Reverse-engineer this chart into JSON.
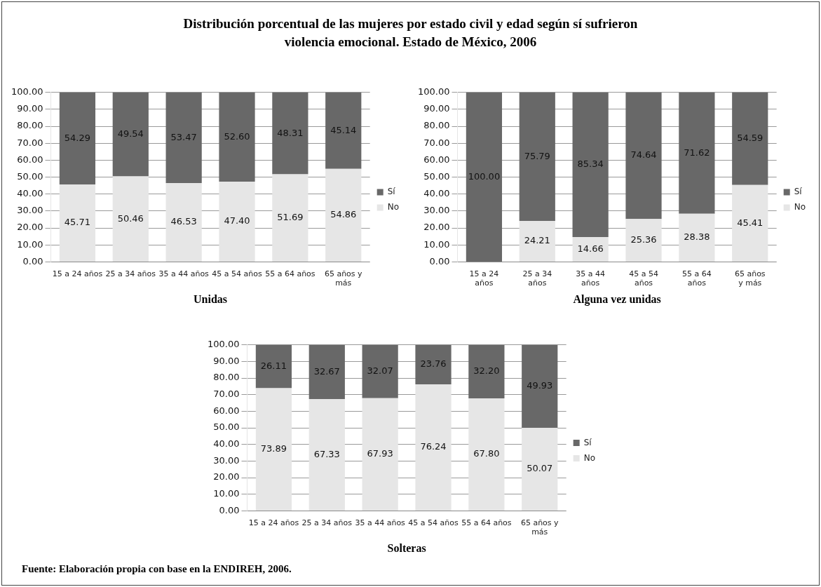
{
  "chart_data": [
    {
      "type": "bar",
      "title": "Distribución porcentual de las mujeres por estado civil y edad según sí sufrieron violencia emocional. Estado de México, 2006",
      "xlabel": "Unidas",
      "categories": [
        "15 a 24 años",
        "25 a 34 años",
        "35 a 44 años",
        "45 a 54 años",
        "55 a 64 años",
        "65 años y más"
      ],
      "stacked": true,
      "legend": "right",
      "grid": "y",
      "ylim": [
        0,
        100
      ],
      "yticks": [
        {
          "value": 0,
          "label": "0.00"
        },
        {
          "value": 10,
          "label": "10.00"
        },
        {
          "value": 20,
          "label": "20.00"
        },
        {
          "value": 30,
          "label": "30.00"
        },
        {
          "value": 40,
          "label": "40.00"
        },
        {
          "value": 50,
          "label": "50.00"
        },
        {
          "value": 60,
          "label": "60.00"
        },
        {
          "value": 70,
          "label": "70.00"
        },
        {
          "value": 80,
          "label": "80.00"
        },
        {
          "value": 90,
          "label": "90.00"
        },
        {
          "value": 100,
          "label": "100.00"
        }
      ],
      "series": [
        {
          "name": "No",
          "color": "#e6e6e6",
          "values": [
            45.71,
            50.46,
            46.53,
            47.4,
            51.69,
            54.86
          ],
          "value_labels": [
            "45.71",
            "50.46",
            "46.53",
            "47.40",
            "51.69",
            "54.86"
          ]
        },
        {
          "name": "Sí",
          "color": "#686868",
          "values": [
            54.29,
            49.54,
            53.47,
            52.6,
            48.31,
            45.14
          ],
          "value_labels": [
            "54.29",
            "49.54",
            "53.47",
            "52.60",
            "48.31",
            "45.14"
          ]
        }
      ]
    },
    {
      "type": "bar",
      "xlabel": "Alguna vez unidas",
      "categories": [
        "15 a 24 años",
        "25 a 34 años",
        "35 a 44 años",
        "45 a 54 años",
        "55 a 64 años",
        "65 años y más"
      ],
      "stacked": true,
      "legend": "right",
      "grid": "y",
      "ylim": [
        0,
        100
      ],
      "yticks": [
        {
          "value": 0,
          "label": "0.00"
        },
        {
          "value": 10,
          "label": "10.00"
        },
        {
          "value": 20,
          "label": "20.00"
        },
        {
          "value": 30,
          "label": "30.00"
        },
        {
          "value": 40,
          "label": "40.00"
        },
        {
          "value": 50,
          "label": "50.00"
        },
        {
          "value": 60,
          "label": "60.00"
        },
        {
          "value": 70,
          "label": "70.00"
        },
        {
          "value": 80,
          "label": "80.00"
        },
        {
          "value": 90,
          "label": "90.00"
        },
        {
          "value": 100,
          "label": "100.00"
        }
      ],
      "series": [
        {
          "name": "No",
          "color": "#e6e6e6",
          "values": [
            0,
            24.21,
            14.66,
            25.36,
            28.38,
            45.41
          ],
          "value_labels": [
            null,
            "24.21",
            "14.66",
            "25.36",
            "28.38",
            "45.41"
          ]
        },
        {
          "name": "Sí",
          "color": "#686868",
          "values": [
            100,
            75.79,
            85.34,
            74.64,
            71.62,
            54.59
          ],
          "value_labels": [
            "100.00",
            "75.79",
            "85.34",
            "74.64",
            "71.62",
            "54.59"
          ]
        }
      ]
    },
    {
      "type": "bar",
      "xlabel": "Solteras",
      "categories": [
        "15 a 24 años",
        "25 a 34 años",
        "35 a 44 años",
        "45 a 54 años",
        "55 a 64 años",
        "65 años y más"
      ],
      "stacked": true,
      "legend": "right",
      "grid": "y",
      "ylim": [
        0,
        100
      ],
      "yticks": [
        {
          "value": 0,
          "label": "0.00"
        },
        {
          "value": 10,
          "label": "10.00"
        },
        {
          "value": 20,
          "label": "20.00"
        },
        {
          "value": 30,
          "label": "30.00"
        },
        {
          "value": 40,
          "label": "40.00"
        },
        {
          "value": 50,
          "label": "50.00"
        },
        {
          "value": 60,
          "label": "60.00"
        },
        {
          "value": 70,
          "label": "70.00"
        },
        {
          "value": 80,
          "label": "80.00"
        },
        {
          "value": 90,
          "label": "90.00"
        },
        {
          "value": 100,
          "label": "100.00"
        }
      ],
      "annotations": [
        "Fuente: Elaboración propia con base en la ENDIREH, 2006."
      ],
      "series": [
        {
          "name": "No",
          "color": "#e6e6e6",
          "values": [
            73.89,
            67.33,
            67.93,
            76.24,
            67.8,
            50.07
          ],
          "value_labels": [
            "73.89",
            "67.33",
            "67.93",
            "76.24",
            "67.80",
            "50.07"
          ]
        },
        {
          "name": "Sí",
          "color": "#686868",
          "values": [
            26.11,
            32.67,
            32.07,
            23.76,
            32.2,
            49.93
          ],
          "value_labels": [
            "26.11",
            "32.67",
            "32.07",
            "23.76",
            "32.20",
            "49.93"
          ]
        }
      ]
    }
  ]
}
